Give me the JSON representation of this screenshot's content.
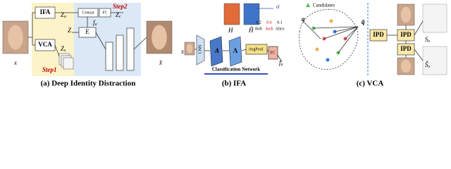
{
  "panel_a": {
    "caption": "(a) Deep Identity Distraction",
    "input": "x",
    "output": "x̂",
    "ifa": "IFA",
    "vca": "VCA",
    "concat": "Concat",
    "fc": "FC",
    "encoder": "E",
    "step1": "Step1",
    "step2": "Step2",
    "za": {
      "main": "Z",
      "sub": "a"
    },
    "zc": {
      "main": "Z",
      "sub": "c"
    },
    "z": "Z",
    "fa": {
      "main": "f",
      "sub": "a"
    },
    "zs": {
      "main": "Z",
      "sub": "s"
    }
  },
  "panel_b": {
    "caption": "(b) IFA",
    "input": "x",
    "cnn": "CNN",
    "a": "A",
    "lambda": "Λ",
    "avgpool": "AvgPool",
    "fc": "FC",
    "fa": {
      "main": "f",
      "sub": "a"
    },
    "h": "H",
    "h_hat": "Ĥ",
    "alpha": "α",
    "scores": [
      "0.2",
      "0.6",
      "0.1"
    ],
    "names": [
      "Bob",
      "Jack",
      "Alice"
    ],
    "network": "Classification Network"
  },
  "panel_c": {
    "caption": "(c) VCA",
    "legend": "Candidates",
    "q": "q",
    "q_bar": "q̄",
    "ipd": [
      "IPD",
      "IPD",
      "IPD"
    ],
    "s": {
      "main": "S",
      "sub": "x"
    },
    "s_hat": {
      "main": "Ŝ",
      "sub": "x"
    }
  }
}
